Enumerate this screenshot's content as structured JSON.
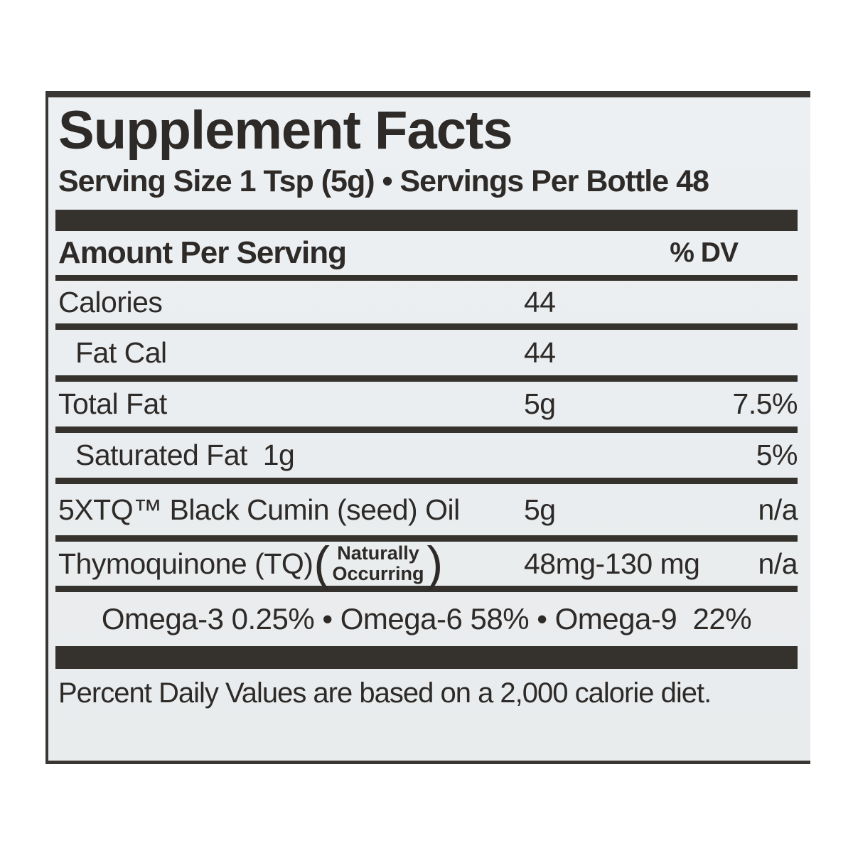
{
  "panel": {
    "title": "Supplement Facts",
    "serving_line": "Serving Size 1 Tsp (5g) • Servings Per Bottle 48",
    "header": {
      "amount": "Amount Per Serving",
      "dv": "% DV"
    },
    "rows": [
      {
        "name": "Calories",
        "amount": "44",
        "dv": "",
        "indent": false
      },
      {
        "name": "Fat Cal",
        "amount": "44",
        "dv": "",
        "indent": true
      },
      {
        "name": "Total Fat",
        "amount": "5g",
        "dv": "7.5%",
        "indent": false
      },
      {
        "name": "Saturated Fat  1g",
        "amount": "",
        "dv": "5%",
        "indent": true
      },
      {
        "name": "5XTQ™ Black Cumin (seed) Oil",
        "amount": "5g",
        "dv": "n/a",
        "indent": false
      }
    ],
    "thymo": {
      "name": "Thymoquinone (TQ)",
      "paren_open": "(",
      "qualifier_line1": "Naturally",
      "qualifier_line2": "Occurring",
      "paren_close": ")",
      "amount": "48mg-130 mg",
      "dv": "n/a"
    },
    "omega_line": "Omega-3 0.25% • Omega-6 58% • Omega-9  22%",
    "footnote": "Percent Daily Values are based on a 2,000 calorie diet.",
    "colors": {
      "ink": "#2d2a28",
      "bar": "#35312c",
      "label_background": "#eaedef",
      "page_background": "#ffffff"
    }
  }
}
